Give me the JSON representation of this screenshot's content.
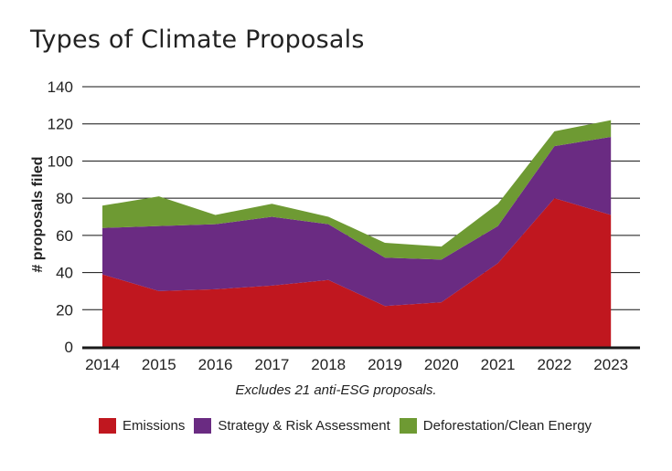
{
  "chart_data": {
    "type": "area",
    "stacked": true,
    "title": "Types of Climate Proposals",
    "xlabel": "",
    "ylabel": "# proposals filed",
    "note": "Excludes 21 anti-ESG proposals.",
    "categories": [
      "2014",
      "2015",
      "2016",
      "2017",
      "2018",
      "2019",
      "2020",
      "2021",
      "2022",
      "2023"
    ],
    "ylim": [
      0,
      140
    ],
    "yticks": [
      0,
      20,
      40,
      60,
      80,
      100,
      120,
      140
    ],
    "grid": true,
    "legend_position": "bottom",
    "series": [
      {
        "name": "Emissions",
        "color": "#c0171f",
        "values": [
          39,
          30,
          31,
          33,
          36,
          22,
          24,
          45,
          80,
          71
        ]
      },
      {
        "name": "Strategy & Risk Assessment",
        "color": "#6a2b82",
        "values": [
          25,
          35,
          35,
          37,
          30,
          26,
          23,
          20,
          28,
          42
        ]
      },
      {
        "name": "Deforestation/Clean Energy",
        "color": "#6e9a33",
        "values": [
          12,
          16,
          5,
          7,
          4,
          8,
          7,
          12,
          8,
          9
        ]
      }
    ]
  }
}
